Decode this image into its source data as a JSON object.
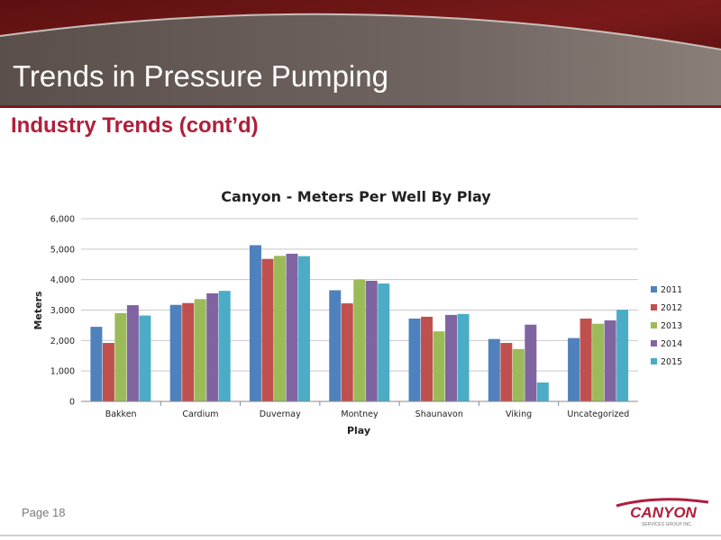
{
  "slide": {
    "title": "Trends in Pressure Pumping",
    "subtitle": "Industry Trends (cont’d)",
    "page": "Page 18",
    "logo_text": "CANYON",
    "logo_subtext": "SERVICES GROUP INC."
  },
  "colors": {
    "title_bar": "#6b5f5a",
    "subtitle": "#b01e3a",
    "series": [
      "#4f81bd",
      "#c0504d",
      "#9bbb59",
      "#8064a2",
      "#4bacc6"
    ]
  },
  "chart_data": {
    "type": "bar",
    "title": "Canyon - Meters Per Well By Play",
    "xlabel": "Play",
    "ylabel": "Meters",
    "ylim": [
      0,
      6000
    ],
    "yticks": [
      0,
      1000,
      2000,
      3000,
      4000,
      5000,
      6000
    ],
    "ytick_labels": [
      "0",
      "1,000",
      "2,000",
      "3,000",
      "4,000",
      "5,000",
      "6,000"
    ],
    "grid": true,
    "legend": "right",
    "categories": [
      "Bakken",
      "Cardium",
      "Duvernay",
      "Montney",
      "Shaunavon",
      "Viking",
      "Uncategorized"
    ],
    "series": [
      {
        "name": "2011",
        "values": [
          2450,
          3170,
          5130,
          3650,
          2720,
          2050,
          2080
        ]
      },
      {
        "name": "2012",
        "values": [
          1920,
          3230,
          4680,
          3220,
          2780,
          1920,
          2720
        ]
      },
      {
        "name": "2013",
        "values": [
          2900,
          3360,
          4780,
          4000,
          2300,
          1720,
          2550
        ]
      },
      {
        "name": "2014",
        "values": [
          3160,
          3550,
          4850,
          3960,
          2840,
          2520,
          2660
        ]
      },
      {
        "name": "2015",
        "values": [
          2820,
          3630,
          4770,
          3870,
          2870,
          620,
          3010
        ]
      }
    ]
  }
}
